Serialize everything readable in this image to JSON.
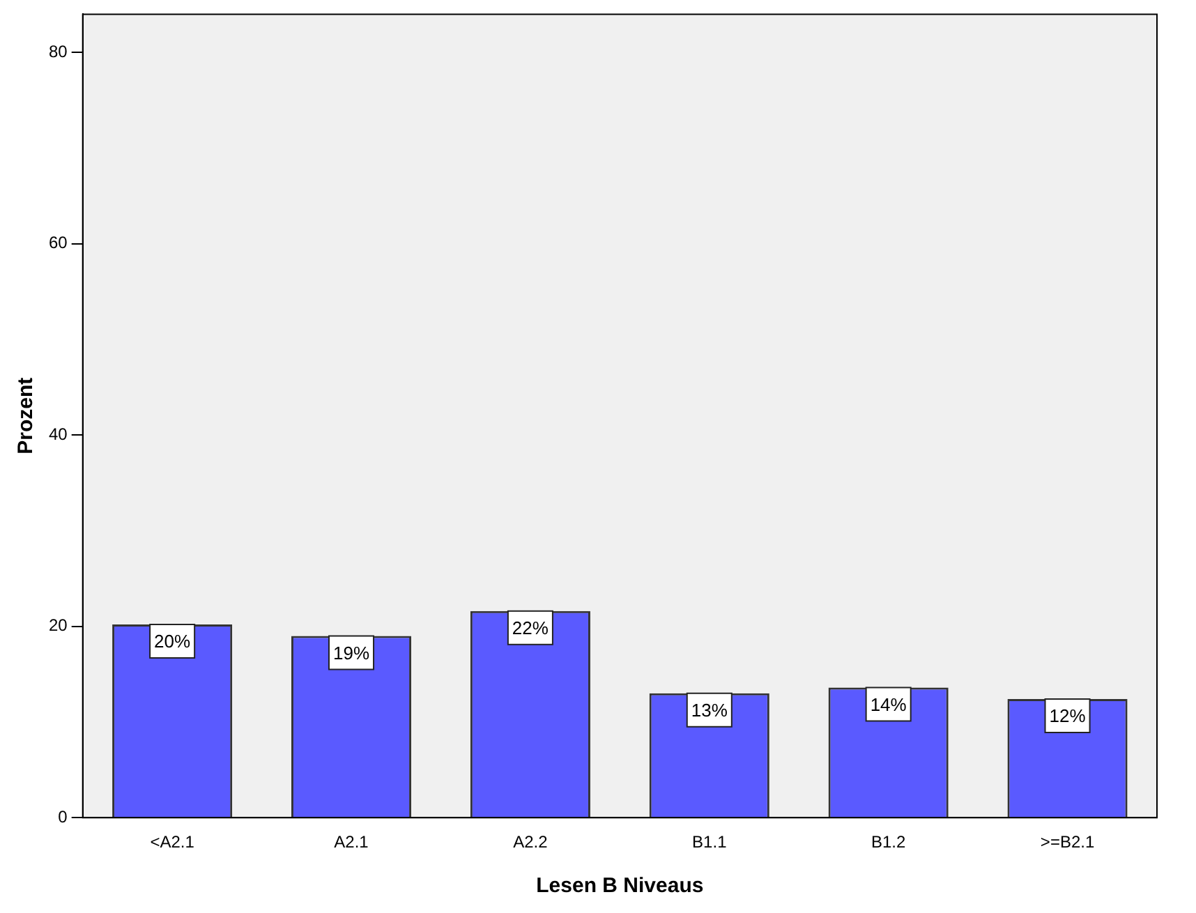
{
  "chart_data": {
    "type": "bar",
    "xlabel": "Lesen B Niveaus",
    "ylabel": "Prozent",
    "categories": [
      "<A2.1",
      "A2.1",
      "A2.2",
      "B1.1",
      "B1.2",
      ">=B2.1"
    ],
    "values": [
      20.2,
      19.0,
      21.6,
      13.0,
      13.6,
      12.4
    ],
    "value_labels": [
      "20%",
      "19%",
      "22%",
      "13%",
      "14%",
      "12%"
    ],
    "color": "#5a5aff",
    "ylim": [
      0,
      84
    ],
    "yticks": [
      0,
      20,
      40,
      60,
      80
    ],
    "grid": false,
    "legend": false
  }
}
